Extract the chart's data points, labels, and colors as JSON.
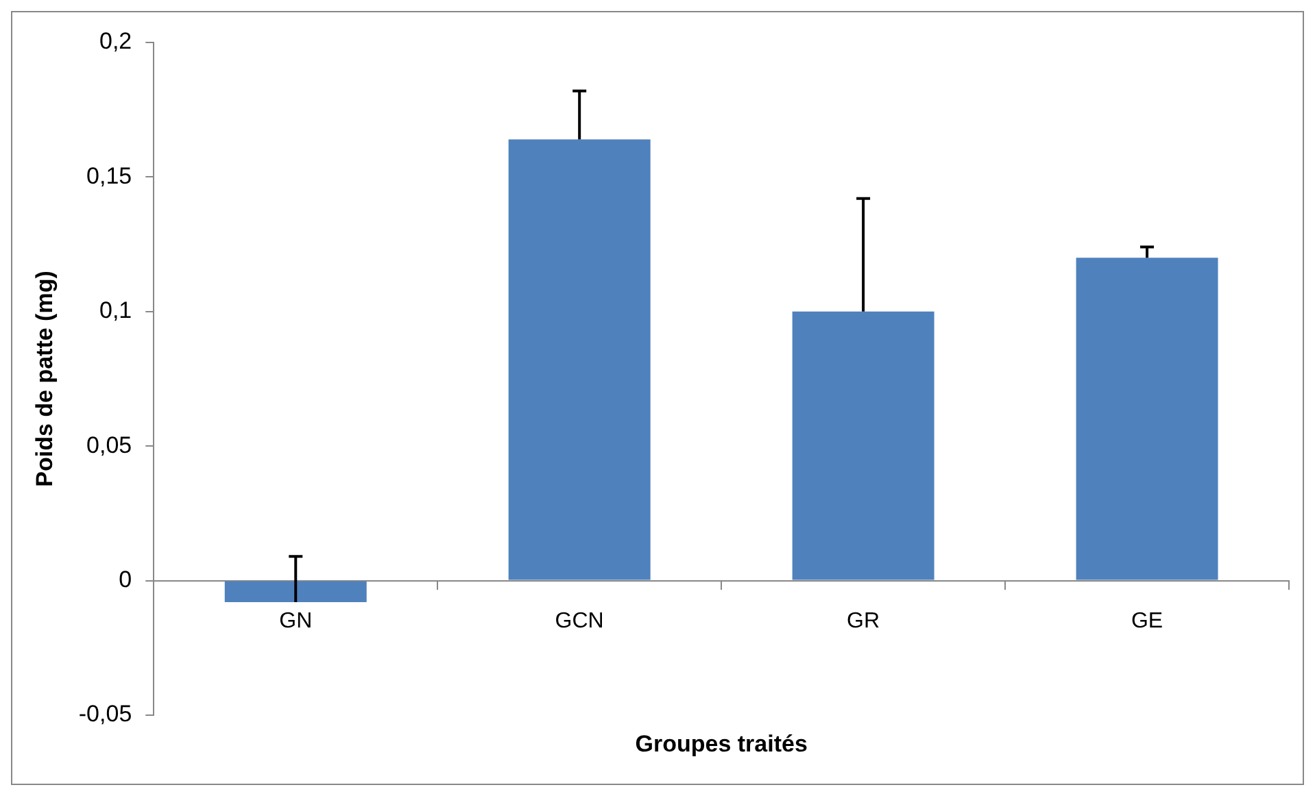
{
  "chart_data": {
    "type": "bar",
    "xlabel": "Groupes traités",
    "ylabel": "Poids de patte (mg)",
    "categories": [
      "GN",
      "GCN",
      "GR",
      "GE"
    ],
    "series": [
      {
        "color": "#4f81bd",
        "values": [
          -0.008,
          0.164,
          0.1,
          0.12
        ],
        "errors": [
          [
            -0.008,
            0.009
          ],
          [
            0.164,
            0.182
          ],
          [
            0.1,
            0.142
          ],
          [
            0.12,
            0.124
          ]
        ]
      }
    ],
    "ylim": [
      -0.05,
      0.2
    ],
    "yticks": [
      {
        "value": -0.05,
        "label": "-0,05"
      },
      0,
      {
        "value": 0.05,
        "label": "0,05"
      },
      {
        "value": 0.1,
        "label": "0,1"
      },
      {
        "value": 0.15,
        "label": "0,15"
      },
      {
        "value": 0.2,
        "label": "0,2"
      }
    ],
    "grid": false,
    "legend": false
  }
}
